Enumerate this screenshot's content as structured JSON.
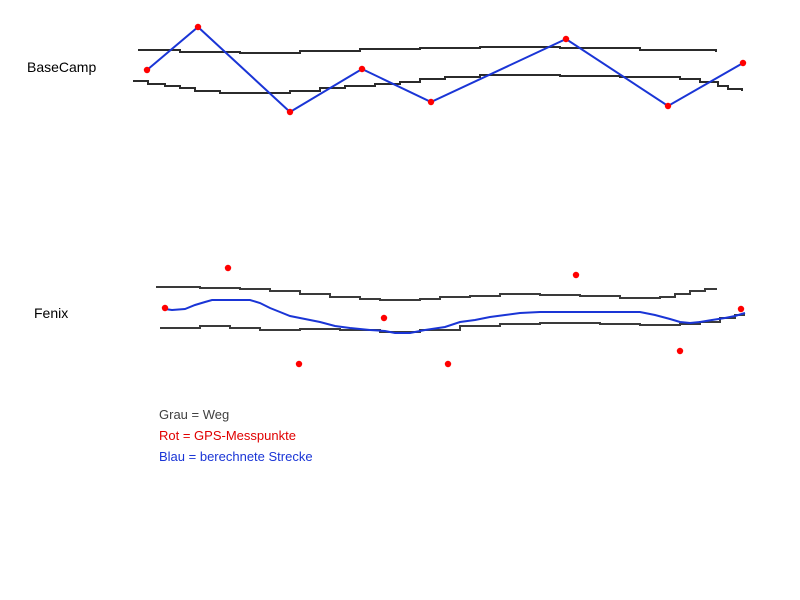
{
  "panels": {
    "basecamp": {
      "label": "BaseCamp"
    },
    "fenix": {
      "label": "Fenix"
    }
  },
  "legend": {
    "grey": {
      "text": "Grau = Weg",
      "color": "#404040"
    },
    "red": {
      "text": "Rot = GPS-Messpunkte",
      "color": "#e00000"
    },
    "blue": {
      "text": "Blau = berechnete Strecke",
      "color": "#1a35d6"
    }
  },
  "colors": {
    "path": "#2b2b2b",
    "points": "#ff0000",
    "route": "#1a35d6"
  }
}
